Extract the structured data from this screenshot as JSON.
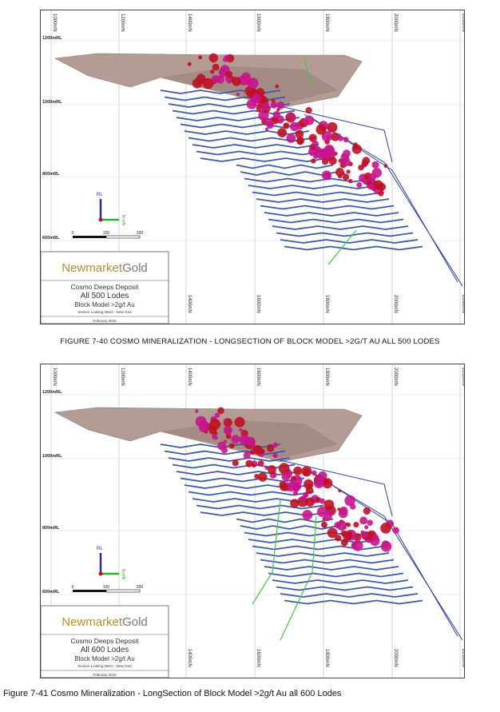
{
  "figures": [
    {
      "grid_top": [
        "1000mN",
        "1200mN",
        "1400mN",
        "1600mN",
        "1800mN",
        "2000mN",
        "2200mN"
      ],
      "grid_bottom": [
        "1400mN",
        "1600mN",
        "1800mN",
        "2000mN",
        "2200mN"
      ],
      "grid_left": [
        "1200mRL",
        "1000mRL",
        "800mRL",
        "600mRL"
      ],
      "axis_up": "RL",
      "axis_right": "N-mN",
      "scale": [
        0,
        100,
        200
      ],
      "legend": {
        "company_a": "Newmarket",
        "company_b": "Gold",
        "deposit": "Cosmo Deeps Deposit",
        "lodes": "All 500 Lodes",
        "model": "Block Model >2g/t Au",
        "section": "Section Looking West – New Grid",
        "date": "February 2016"
      },
      "caption": "FIGURE 7-40 COSMO MINERALIZATION - LONGSECTION OF BLOCK MODEL >2G/T AU ALL 500 LODES"
    },
    {
      "grid_top": [
        "1000mN",
        "1200mN",
        "1400mN",
        "1600mN",
        "1800mN",
        "2000mN",
        "2200mN"
      ],
      "grid_bottom": [
        "1400mN",
        "1600mN",
        "1800mN",
        "2000mN",
        "2200mN"
      ],
      "grid_left": [
        "1200mRL",
        "1000mRL",
        "800mRL",
        "600mRL"
      ],
      "axis_up": "RL",
      "axis_right": "N-mN",
      "scale": [
        0,
        100,
        200
      ],
      "legend": {
        "company_a": "Newmarket",
        "company_b": "Gold",
        "deposit": "Cosmo Deeps Deposit",
        "lodes": "All 600 Lodes",
        "model": "Block Model >2g/t Au",
        "section": "Section Looking West – New Grid",
        "date": "February 2016"
      },
      "caption": "Figure 7-41 Cosmo Mineralization - LongSection of Block Model >2g/t Au all 600 Lodes"
    }
  ]
}
